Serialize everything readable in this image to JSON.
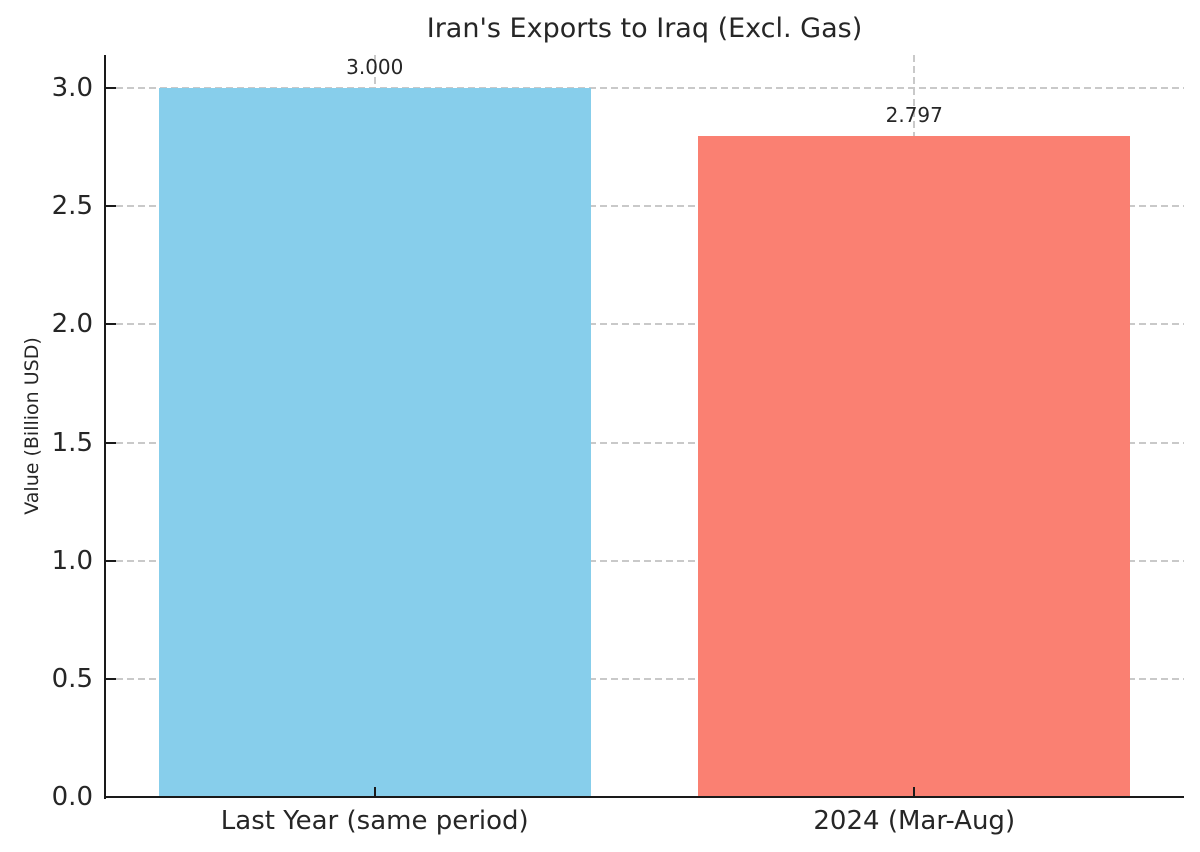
{
  "chart_data": {
    "type": "bar",
    "title": "Iran's Exports to Iraq (Excl. Gas)",
    "ylabel": "Value (Billion USD)",
    "xlabel": "",
    "categories": [
      "Last Year (same period)",
      "2024 (Mar-Aug)"
    ],
    "values": [
      3.0,
      2.797
    ],
    "value_labels": [
      "3.000",
      "2.797"
    ],
    "bar_colors": [
      "#87CEEB",
      "#FA8072"
    ],
    "yticks": [
      0.0,
      0.5,
      1.0,
      1.5,
      2.0,
      2.5,
      3.0
    ],
    "ytick_labels": [
      "0.0",
      "0.5",
      "1.0",
      "1.5",
      "2.0",
      "2.5",
      "3.0"
    ],
    "ylim": [
      0,
      3.14
    ],
    "bar_width_fraction": 0.8,
    "grid": true,
    "grid_style": "dashed",
    "legend_position": "none",
    "colors": {
      "grid": "#c9c9c9",
      "axis": "#1a1a1a",
      "text": "#262626",
      "background": "#ffffff"
    }
  }
}
